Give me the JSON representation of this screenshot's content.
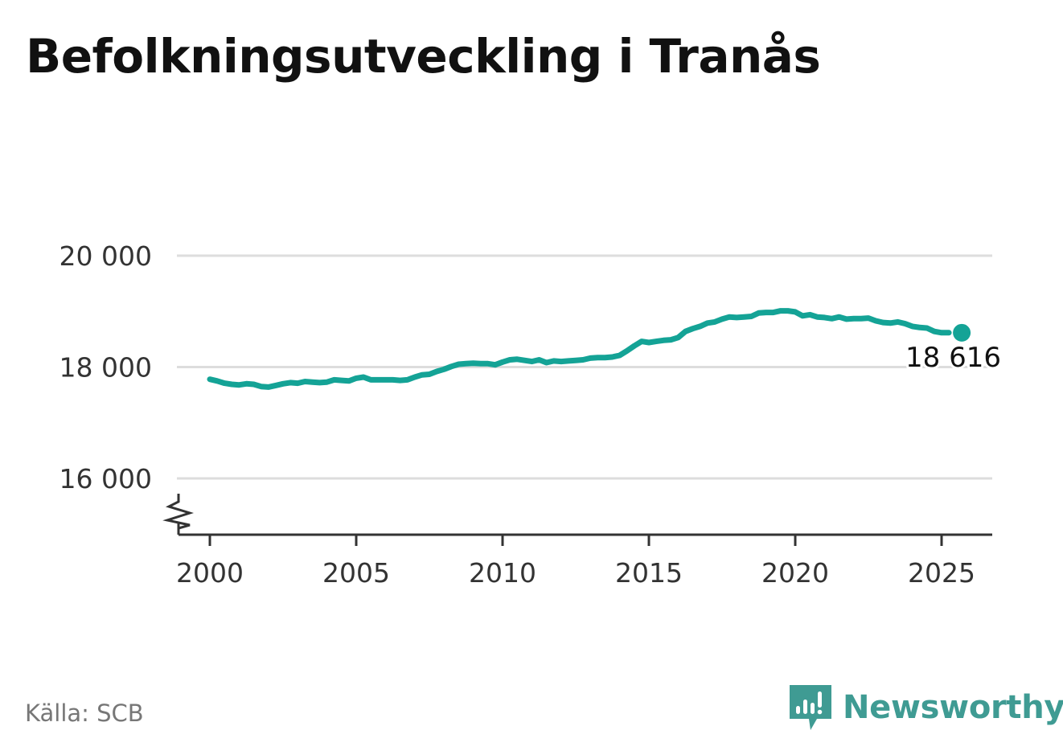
{
  "title": "Befolkningsutveckling i Tranås",
  "source": "Källa: SCB",
  "brand": {
    "name": "Newsworthy",
    "logo_icon": "newsworthy-bar-chart-icon",
    "color": "#3f9b93"
  },
  "chart_data": {
    "type": "line",
    "title": "Befolkningsutveckling i Tranås",
    "xlabel": "",
    "ylabel": "",
    "xlim": [
      1999.5,
      2026.3
    ],
    "ylim": [
      15000,
      20000
    ],
    "axis_break": true,
    "grid": true,
    "legend": "none",
    "line_color": "#14a396",
    "grid_color": "#dddddd",
    "x_ticks": [
      2000,
      2005,
      2010,
      2015,
      2020,
      2025
    ],
    "x_tick_labels": [
      "2000",
      "2005",
      "2010",
      "2015",
      "2020",
      "2025"
    ],
    "y_ticks": [
      16000,
      18000,
      20000
    ],
    "y_tick_labels": [
      "16 000",
      "18 000",
      "20 000"
    ],
    "end_label": "18 616",
    "series": [
      {
        "x": [
          2000.0,
          2000.25,
          2000.5,
          2000.75,
          2001.0,
          2001.25,
          2001.5,
          2001.75,
          2002.0,
          2002.25,
          2002.5,
          2002.75,
          2003.0,
          2003.25,
          2003.5,
          2003.75,
          2004.0,
          2004.25,
          2004.5,
          2004.75,
          2005.0,
          2005.25,
          2005.5,
          2005.75,
          2006.0,
          2006.25,
          2006.5,
          2006.75,
          2007.0,
          2007.25,
          2007.5,
          2007.75,
          2008.0,
          2008.25,
          2008.5,
          2008.75,
          2009.0,
          2009.25,
          2009.5,
          2009.75,
          2010.0,
          2010.25,
          2010.5,
          2010.75,
          2011.0,
          2011.25,
          2011.5,
          2011.75,
          2012.0,
          2012.25,
          2012.5,
          2012.75,
          2013.0,
          2013.25,
          2013.5,
          2013.75,
          2014.0,
          2014.25,
          2014.5,
          2014.75,
          2015.0,
          2015.25,
          2015.5,
          2015.75,
          2016.0,
          2016.25,
          2016.5,
          2016.75,
          2017.0,
          2017.25,
          2017.5,
          2017.75,
          2018.0,
          2018.25,
          2018.5,
          2018.75,
          2019.0,
          2019.25,
          2019.5,
          2019.75,
          2020.0,
          2020.25,
          2020.5,
          2020.75,
          2021.0,
          2021.25,
          2021.5,
          2021.75,
          2022.0,
          2022.25,
          2022.5,
          2022.75,
          2023.0,
          2023.25,
          2023.5,
          2023.75,
          2024.0,
          2024.25,
          2024.5,
          2024.75,
          2025.0,
          2025.25
        ],
        "y": [
          17780,
          17750,
          17710,
          17690,
          17680,
          17700,
          17690,
          17650,
          17640,
          17670,
          17700,
          17720,
          17710,
          17740,
          17730,
          17720,
          17730,
          17770,
          17760,
          17750,
          17800,
          17820,
          17770,
          17770,
          17770,
          17770,
          17760,
          17770,
          17820,
          17860,
          17870,
          17920,
          17960,
          18010,
          18050,
          18060,
          18070,
          18060,
          18060,
          18040,
          18090,
          18130,
          18140,
          18120,
          18100,
          18130,
          18080,
          18110,
          18100,
          18110,
          18120,
          18130,
          18160,
          18170,
          18170,
          18180,
          18210,
          18290,
          18380,
          18460,
          18440,
          18460,
          18480,
          18490,
          18530,
          18640,
          18690,
          18730,
          18790,
          18810,
          18860,
          18900,
          18890,
          18900,
          18910,
          18970,
          18980,
          18980,
          19010,
          19010,
          18990,
          18920,
          18940,
          18900,
          18890,
          18870,
          18900,
          18860,
          18870,
          18870,
          18880,
          18830,
          18800,
          18790,
          18810,
          18780,
          18730,
          18710,
          18700,
          18640,
          18616,
          18616
        ]
      }
    ]
  }
}
